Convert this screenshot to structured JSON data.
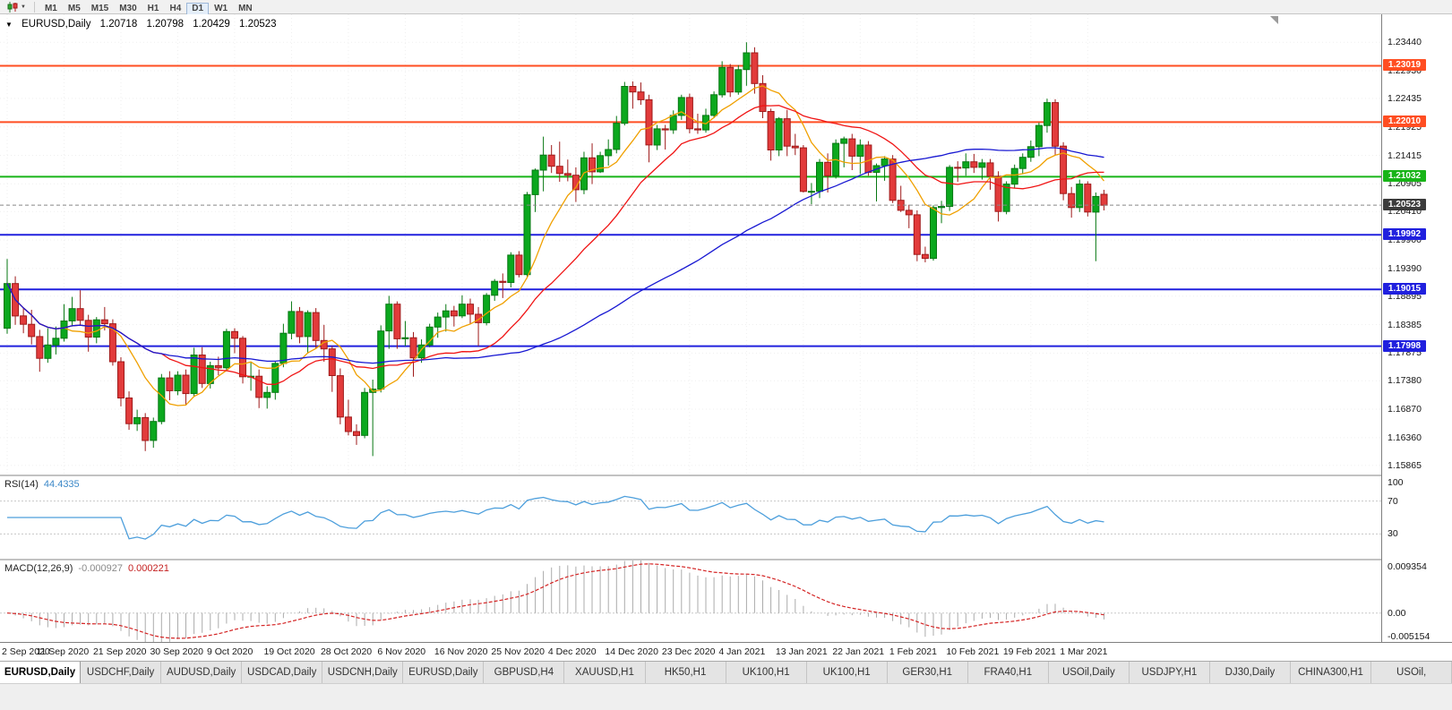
{
  "icons": {
    "one_click_collapse": "▼",
    "toolbar_caret": "▼"
  },
  "colors": {
    "bull": "#0BA81E",
    "bull_border": "#067712",
    "bear": "#E23B3B",
    "bear_border": "#9E1A1A",
    "grid": "#EFEFEF",
    "panel_border": "#7F7F7F",
    "rsi_line": "#4D9FDC",
    "level_line": "#C8C8C8",
    "macd_hist": "#ABABAB",
    "macd_signal": "#D42424",
    "current_line": "#888888"
  },
  "toolbar": {
    "timeframes": [
      {
        "label": "M1",
        "active": false
      },
      {
        "label": "M5",
        "active": false
      },
      {
        "label": "M15",
        "active": false
      },
      {
        "label": "M30",
        "active": false
      },
      {
        "label": "H1",
        "active": false
      },
      {
        "label": "H4",
        "active": false
      },
      {
        "label": "D1",
        "active": true
      },
      {
        "label": "W1",
        "active": false
      },
      {
        "label": "MN",
        "active": false
      }
    ]
  },
  "chart": {
    "title": {
      "symbol": "EURUSD,Daily",
      "open": "1.20718",
      "high": "1.20798",
      "low": "1.20429",
      "close": "1.20523"
    },
    "current_price": {
      "value": 1.20523,
      "label": "1.20523",
      "badge_color": "#3C3C3C"
    }
  },
  "chart_data": {
    "type": "candlestick",
    "symbol": "EURUSD",
    "timeframe": "Daily",
    "ylim": [
      1.157,
      1.2394
    ],
    "y_ticks": [
      "1.23440",
      "1.22930",
      "1.22435",
      "1.21925",
      "1.21415",
      "1.20905",
      "1.20410",
      "1.19900",
      "1.19390",
      "1.18895",
      "1.18385",
      "1.17875",
      "1.17380",
      "1.16870",
      "1.16360",
      "1.15865"
    ],
    "x_labels": [
      "2 Sep 2020",
      "11 Sep 2020",
      "21 Sep 2020",
      "30 Sep 2020",
      "9 Oct 2020",
      "19 Oct 2020",
      "28 Oct 2020",
      "6 Nov 2020",
      "16 Nov 2020",
      "25 Nov 2020",
      "4 Dec 2020",
      "14 Dec 2020",
      "23 Dec 2020",
      "4 Jan 2021",
      "13 Jan 2021",
      "22 Jan 2021",
      "1 Feb 2021",
      "10 Feb 2021",
      "19 Feb 2021",
      "1 Mar 2021"
    ],
    "x_label_interval": 7,
    "horizontal_lines": [
      {
        "price": 1.23019,
        "label": "1.23019",
        "color": "#FF4E22"
      },
      {
        "price": 1.2201,
        "label": "1.22010",
        "color": "#FF4E22"
      },
      {
        "price": 1.21032,
        "label": "1.21032",
        "color": "#18B418"
      },
      {
        "price": 1.19992,
        "label": "1.19992",
        "color": "#2020DE"
      },
      {
        "price": 1.19015,
        "label": "1.19015",
        "color": "#2020DE"
      },
      {
        "price": 1.17998,
        "label": "1.17998",
        "color": "#2020DE"
      }
    ],
    "moving_averages": [
      {
        "period": 8,
        "color": "#F0A000"
      },
      {
        "period": 20,
        "color": "#F01414"
      },
      {
        "period": 55,
        "color": "#1818D2"
      }
    ],
    "indicators": [
      {
        "name": "RSI",
        "label": "RSI(14)",
        "value": "44.4335",
        "period": 14,
        "levels": [
          70,
          30
        ],
        "scale_labels": [
          "100",
          "70",
          "30"
        ],
        "range": [
          0,
          100
        ]
      },
      {
        "name": "MACD",
        "label": "MACD(12,26,9)",
        "value_main": "-0.000927",
        "value_signal": "0.000221",
        "fast": 12,
        "slow": 26,
        "signal": 9,
        "scale_labels": [
          "0.009354",
          "0.00",
          "-0.005154"
        ],
        "range": [
          -0.005154,
          0.009354
        ]
      }
    ],
    "candles": [
      [
        1.1832,
        1.1956,
        1.1822,
        1.1912
      ],
      [
        1.1912,
        1.1925,
        1.1838,
        1.1854
      ],
      [
        1.1854,
        1.1868,
        1.1823,
        1.1839
      ],
      [
        1.1839,
        1.1865,
        1.1803,
        1.1817
      ],
      [
        1.1817,
        1.1829,
        1.1754,
        1.1778
      ],
      [
        1.1778,
        1.1832,
        1.177,
        1.1802
      ],
      [
        1.1802,
        1.1835,
        1.1785,
        1.1814
      ],
      [
        1.1814,
        1.1875,
        1.1808,
        1.1845
      ],
      [
        1.1845,
        1.1888,
        1.1835,
        1.1867
      ],
      [
        1.1867,
        1.19,
        1.1838,
        1.1846
      ],
      [
        1.1846,
        1.1856,
        1.179,
        1.1816
      ],
      [
        1.1816,
        1.1852,
        1.1805,
        1.1847
      ],
      [
        1.1847,
        1.187,
        1.1828,
        1.184
      ],
      [
        1.184,
        1.1848,
        1.1765,
        1.1772
      ],
      [
        1.1772,
        1.178,
        1.1692,
        1.1707
      ],
      [
        1.1707,
        1.1719,
        1.165,
        1.1661
      ],
      [
        1.1661,
        1.1686,
        1.1648,
        1.1672
      ],
      [
        1.1672,
        1.168,
        1.1612,
        1.1631
      ],
      [
        1.1631,
        1.1672,
        1.1618,
        1.1665
      ],
      [
        1.1665,
        1.175,
        1.166,
        1.1743
      ],
      [
        1.1743,
        1.1755,
        1.1703,
        1.172
      ],
      [
        1.172,
        1.1755,
        1.1712,
        1.1748
      ],
      [
        1.1748,
        1.1758,
        1.1695,
        1.1715
      ],
      [
        1.1715,
        1.1797,
        1.171,
        1.1784
      ],
      [
        1.1784,
        1.1798,
        1.1725,
        1.1733
      ],
      [
        1.1733,
        1.1772,
        1.1724,
        1.1765
      ],
      [
        1.1765,
        1.1781,
        1.1748,
        1.1761
      ],
      [
        1.1761,
        1.1831,
        1.1755,
        1.1826
      ],
      [
        1.1826,
        1.1832,
        1.1787,
        1.1814
      ],
      [
        1.1814,
        1.1818,
        1.1733,
        1.1745
      ],
      [
        1.1745,
        1.1772,
        1.172,
        1.1746
      ],
      [
        1.1746,
        1.1758,
        1.1689,
        1.1708
      ],
      [
        1.1708,
        1.1728,
        1.1688,
        1.1717
      ],
      [
        1.1717,
        1.1772,
        1.1704,
        1.1769
      ],
      [
        1.1769,
        1.184,
        1.1762,
        1.1823
      ],
      [
        1.1823,
        1.188,
        1.1812,
        1.1862
      ],
      [
        1.1862,
        1.187,
        1.1805,
        1.1817
      ],
      [
        1.1817,
        1.1864,
        1.1787,
        1.186
      ],
      [
        1.186,
        1.1868,
        1.1795,
        1.181
      ],
      [
        1.181,
        1.1838,
        1.1772,
        1.1795
      ],
      [
        1.1795,
        1.18,
        1.1718,
        1.1747
      ],
      [
        1.1747,
        1.176,
        1.166,
        1.1673
      ],
      [
        1.1673,
        1.1704,
        1.164,
        1.1647
      ],
      [
        1.1647,
        1.166,
        1.1623,
        1.164
      ],
      [
        1.164,
        1.1725,
        1.1635,
        1.1717
      ],
      [
        1.1717,
        1.174,
        1.1603,
        1.1723
      ],
      [
        1.1723,
        1.1837,
        1.1717,
        1.1827
      ],
      [
        1.1827,
        1.189,
        1.1795,
        1.1875
      ],
      [
        1.1875,
        1.188,
        1.1795,
        1.1813
      ],
      [
        1.1813,
        1.1845,
        1.18,
        1.1815
      ],
      [
        1.1815,
        1.1825,
        1.1745,
        1.1779
      ],
      [
        1.1779,
        1.1812,
        1.177,
        1.1802
      ],
      [
        1.1802,
        1.184,
        1.1798,
        1.1834
      ],
      [
        1.1834,
        1.186,
        1.1815,
        1.1852
      ],
      [
        1.1852,
        1.1875,
        1.1826,
        1.1863
      ],
      [
        1.1863,
        1.1872,
        1.1835,
        1.1854
      ],
      [
        1.1854,
        1.1891,
        1.185,
        1.1875
      ],
      [
        1.1875,
        1.1885,
        1.184,
        1.1857
      ],
      [
        1.1857,
        1.187,
        1.18,
        1.1842
      ],
      [
        1.1842,
        1.1895,
        1.1837,
        1.1891
      ],
      [
        1.1891,
        1.192,
        1.1881,
        1.1916
      ],
      [
        1.1916,
        1.193,
        1.1886,
        1.1914
      ],
      [
        1.1914,
        1.1968,
        1.1905,
        1.1963
      ],
      [
        1.1963,
        1.197,
        1.1923,
        1.1928
      ],
      [
        1.1928,
        1.2076,
        1.1924,
        1.2071
      ],
      [
        1.2071,
        1.2118,
        1.204,
        1.2115
      ],
      [
        1.2115,
        1.2175,
        1.2077,
        1.2142
      ],
      [
        1.2142,
        1.216,
        1.211,
        1.2122
      ],
      [
        1.2122,
        1.2166,
        1.2094,
        1.2109
      ],
      [
        1.2109,
        1.2134,
        1.2095,
        1.2106
      ],
      [
        1.2106,
        1.212,
        1.2058,
        1.208
      ],
      [
        1.208,
        1.2148,
        1.2072,
        1.2137
      ],
      [
        1.2137,
        1.2163,
        1.209,
        1.2112
      ],
      [
        1.2112,
        1.2148,
        1.211,
        1.2141
      ],
      [
        1.2141,
        1.217,
        1.2123,
        1.2152
      ],
      [
        1.2152,
        1.2212,
        1.2145,
        1.2199
      ],
      [
        1.2199,
        1.2273,
        1.2195,
        1.2265
      ],
      [
        1.2265,
        1.2274,
        1.2225,
        1.2255
      ],
      [
        1.2255,
        1.2272,
        1.2232,
        1.2241
      ],
      [
        1.2241,
        1.225,
        1.2129,
        1.216
      ],
      [
        1.216,
        1.2196,
        1.2151,
        1.2189
      ],
      [
        1.2189,
        1.2196,
        1.2152,
        1.2187
      ],
      [
        1.2187,
        1.2222,
        1.218,
        1.2213
      ],
      [
        1.2213,
        1.225,
        1.2205,
        1.2245
      ],
      [
        1.2245,
        1.2252,
        1.2181,
        1.2189
      ],
      [
        1.2189,
        1.2216,
        1.218,
        1.2187
      ],
      [
        1.2187,
        1.2225,
        1.2182,
        1.2213
      ],
      [
        1.2213,
        1.2256,
        1.2208,
        1.225
      ],
      [
        1.225,
        1.231,
        1.2245,
        1.2299
      ],
      [
        1.2299,
        1.2305,
        1.2246,
        1.2255
      ],
      [
        1.2255,
        1.2303,
        1.225,
        1.2295
      ],
      [
        1.2295,
        1.2344,
        1.2266,
        1.2325
      ],
      [
        1.2325,
        1.2335,
        1.2252,
        1.227
      ],
      [
        1.227,
        1.2285,
        1.2208,
        1.222
      ],
      [
        1.222,
        1.2225,
        1.2132,
        1.2151
      ],
      [
        1.2151,
        1.221,
        1.214,
        1.2207
      ],
      [
        1.2207,
        1.2223,
        1.214,
        1.2158
      ],
      [
        1.2158,
        1.218,
        1.2142,
        1.2155
      ],
      [
        1.2155,
        1.216,
        1.2075,
        1.2077
      ],
      [
        1.2077,
        1.2092,
        1.2054,
        1.2077
      ],
      [
        1.2077,
        1.2135,
        1.2065,
        1.2129
      ],
      [
        1.2129,
        1.2145,
        1.2075,
        1.2105
      ],
      [
        1.2105,
        1.217,
        1.21,
        1.2163
      ],
      [
        1.2163,
        1.2175,
        1.212,
        1.2171
      ],
      [
        1.2171,
        1.218,
        1.2115,
        1.214
      ],
      [
        1.214,
        1.217,
        1.2108,
        1.216
      ],
      [
        1.216,
        1.2167,
        1.2105,
        1.2111
      ],
      [
        1.2111,
        1.2127,
        1.2059,
        1.2123
      ],
      [
        1.2123,
        1.214,
        1.2096,
        1.2135
      ],
      [
        1.2135,
        1.2142,
        1.2056,
        1.2061
      ],
      [
        1.2061,
        1.2087,
        1.204,
        1.2043
      ],
      [
        1.2043,
        1.2053,
        1.2011,
        1.2035
      ],
      [
        1.2035,
        1.2043,
        1.1952,
        1.1964
      ],
      [
        1.1964,
        1.1978,
        1.195,
        1.1957
      ],
      [
        1.1957,
        1.2052,
        1.1953,
        1.2048
      ],
      [
        1.2048,
        1.206,
        1.202,
        1.205
      ],
      [
        1.205,
        1.2124,
        1.2042,
        1.212
      ],
      [
        1.212,
        1.2131,
        1.2094,
        1.2119
      ],
      [
        1.2119,
        1.2145,
        1.2105,
        1.213
      ],
      [
        1.213,
        1.2144,
        1.211,
        1.212
      ],
      [
        1.212,
        1.2135,
        1.2098,
        1.2128
      ],
      [
        1.2128,
        1.2135,
        1.208,
        1.2104
      ],
      [
        1.2104,
        1.2113,
        1.2023,
        1.2041
      ],
      [
        1.2041,
        1.2095,
        1.2036,
        1.209
      ],
      [
        1.209,
        1.2125,
        1.2082,
        1.2118
      ],
      [
        1.2118,
        1.2145,
        1.2108,
        1.2138
      ],
      [
        1.2138,
        1.2168,
        1.213,
        1.2157
      ],
      [
        1.2157,
        1.22,
        1.214,
        1.2195
      ],
      [
        1.2195,
        1.2243,
        1.2182,
        1.2236
      ],
      [
        1.2236,
        1.2242,
        1.2142,
        1.2158
      ],
      [
        1.2158,
        1.2165,
        1.2061,
        1.2073
      ],
      [
        1.2073,
        1.2085,
        1.203,
        1.2048
      ],
      [
        1.2048,
        1.2098,
        1.204,
        1.209
      ],
      [
        1.209,
        1.2095,
        1.2032,
        1.204
      ],
      [
        1.204,
        1.2075,
        1.1952,
        1.2068
      ],
      [
        1.20718,
        1.20798,
        1.20429,
        1.20523
      ]
    ]
  },
  "tabs": {
    "items": [
      {
        "label": "EURUSD,Daily",
        "active": true
      },
      {
        "label": "USDCHF,Daily",
        "active": false
      },
      {
        "label": "AUDUSD,Daily",
        "active": false
      },
      {
        "label": "USDCAD,Daily",
        "active": false
      },
      {
        "label": "USDCNH,Daily",
        "active": false
      },
      {
        "label": "EURUSD,Daily",
        "active": false
      },
      {
        "label": "GBPUSD,H4",
        "active": false
      },
      {
        "label": "XAUUSD,H1",
        "active": false
      },
      {
        "label": "HK50,H1",
        "active": false
      },
      {
        "label": "UK100,H1",
        "active": false
      },
      {
        "label": "UK100,H1",
        "active": false
      },
      {
        "label": "GER30,H1",
        "active": false
      },
      {
        "label": "FRA40,H1",
        "active": false
      },
      {
        "label": "USOil,Daily",
        "active": false
      },
      {
        "label": "USDJPY,H1",
        "active": false
      },
      {
        "label": "DJ30,Daily",
        "active": false
      },
      {
        "label": "CHINA300,H1",
        "active": false
      },
      {
        "label": "USOil,",
        "active": false
      }
    ]
  }
}
